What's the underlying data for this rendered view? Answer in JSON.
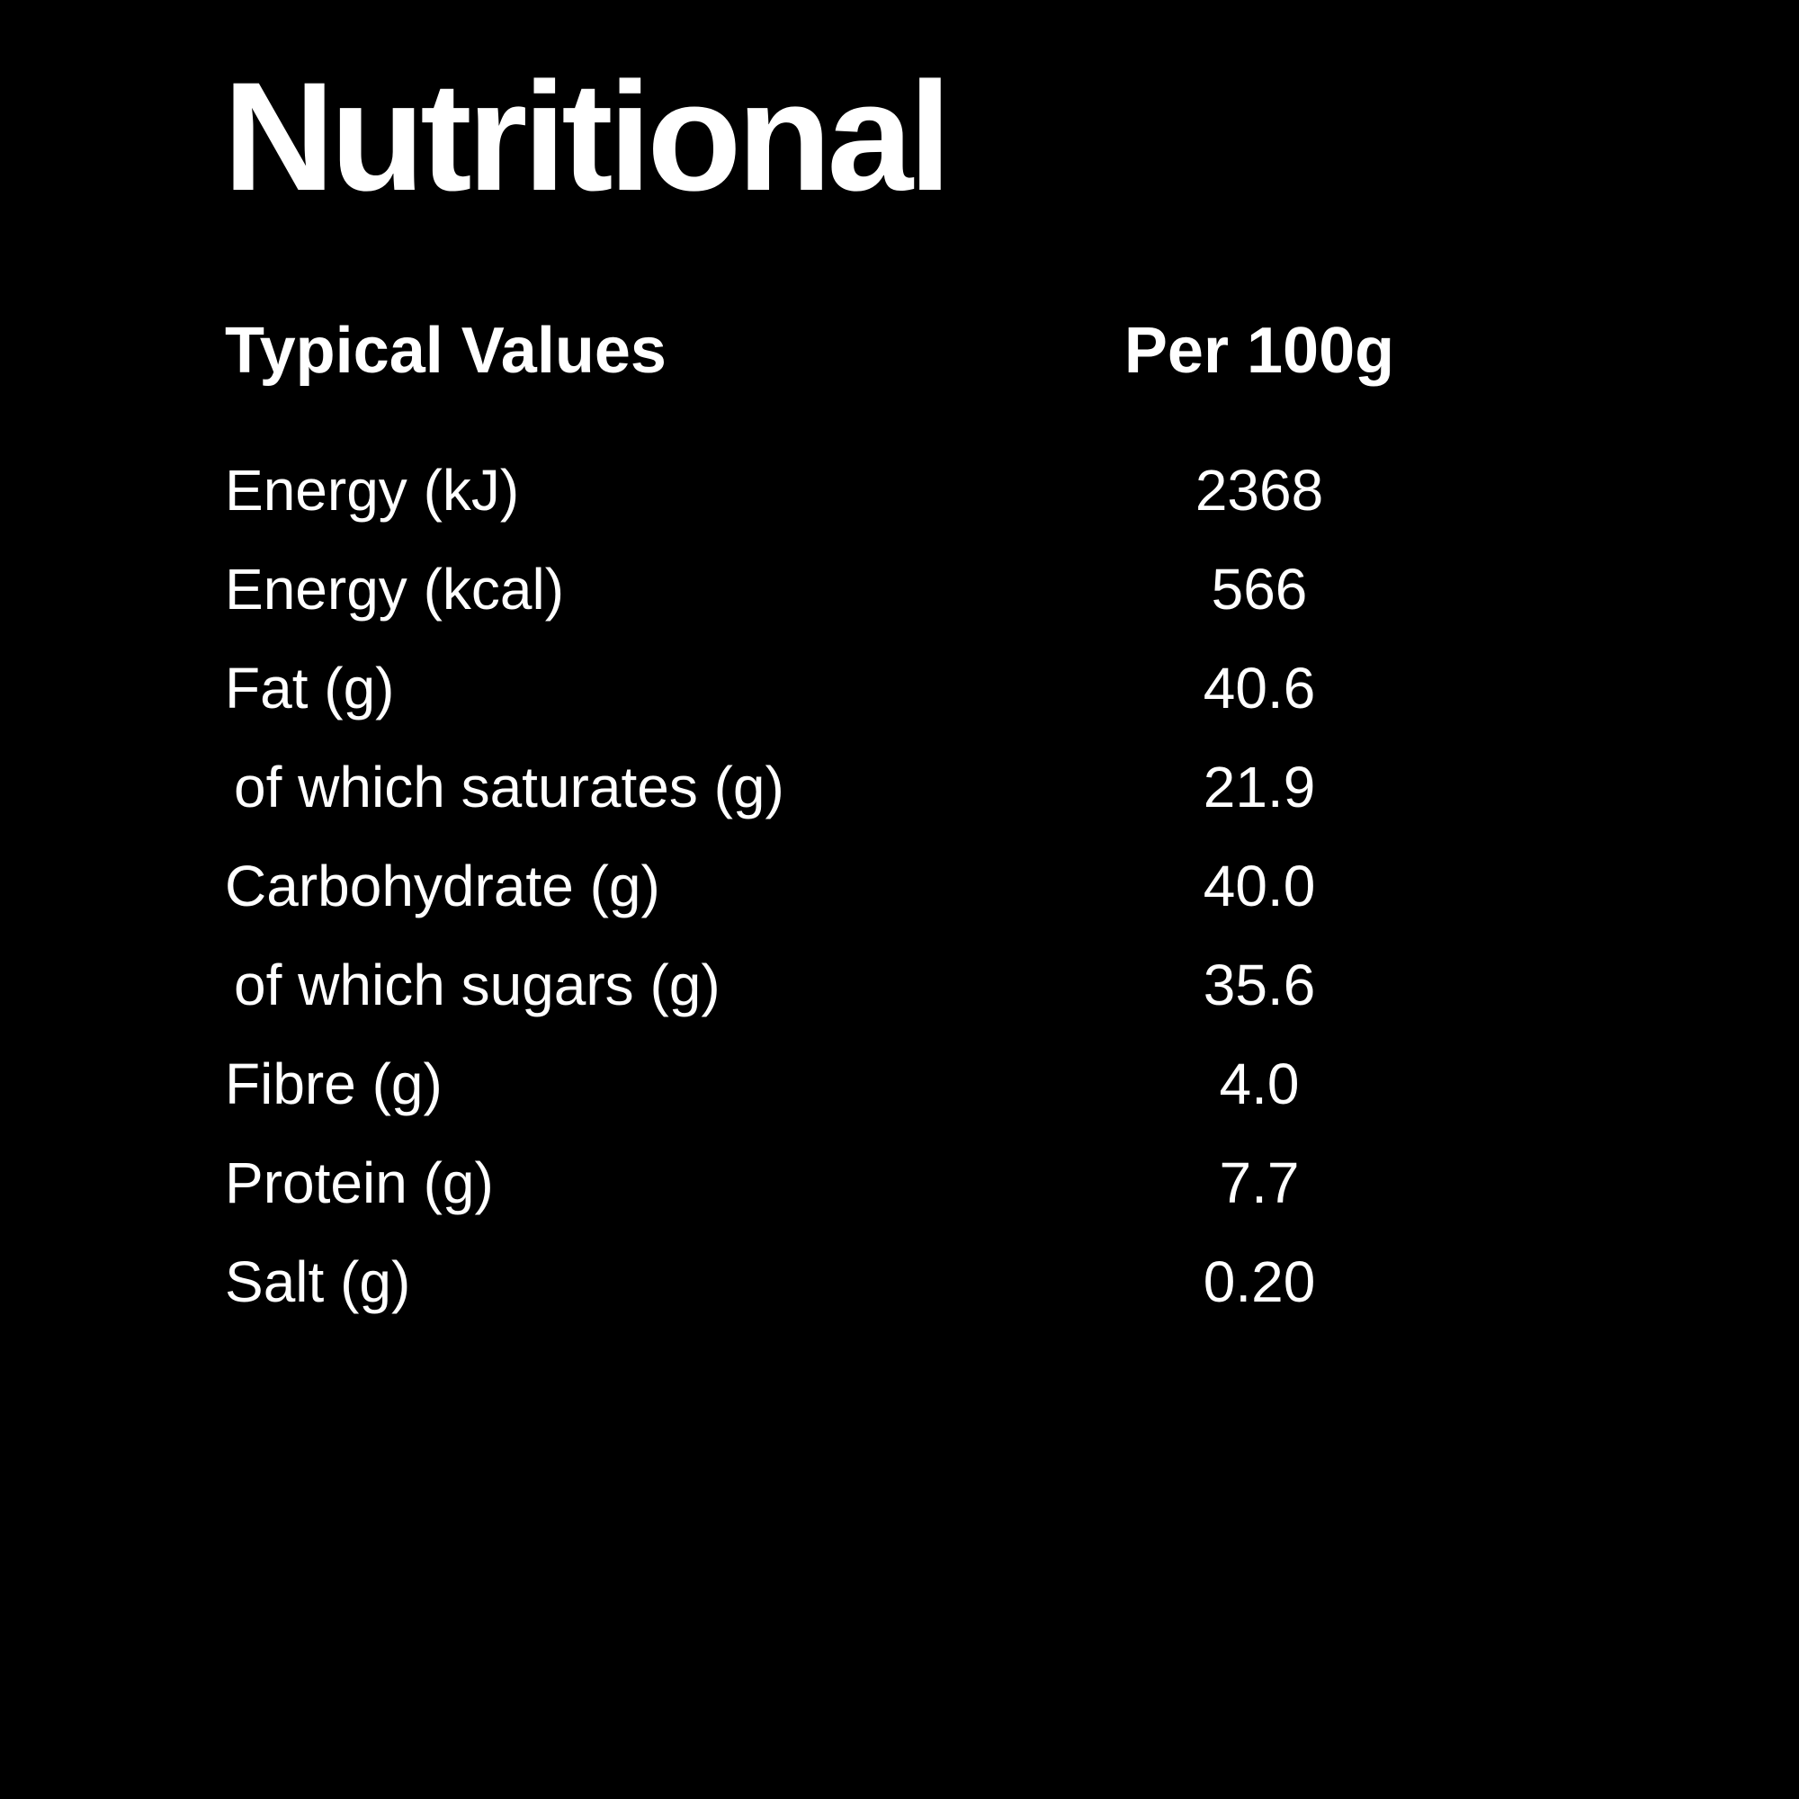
{
  "page": {
    "background_color": "#000000",
    "text_color": "#ffffff"
  },
  "title": "Nutritional",
  "table": {
    "headers": {
      "label": "Typical Values",
      "value": "Per 100g"
    },
    "rows": [
      {
        "label": "Energy (kJ)",
        "value": "2368",
        "indent": false
      },
      {
        "label": "Energy (kcal)",
        "value": "566",
        "indent": false
      },
      {
        "label": "Fat (g)",
        "value": "40.6",
        "indent": false
      },
      {
        "label": "of which saturates (g)",
        "value": "21.9",
        "indent": true
      },
      {
        "label": "Carbohydrate (g)",
        "value": "40.0",
        "indent": false
      },
      {
        "label": "of which sugars (g)",
        "value": "35.6",
        "indent": true
      },
      {
        "label": "Fibre (g)",
        "value": "4.0",
        "indent": false
      },
      {
        "label": "Protein (g)",
        "value": "7.7",
        "indent": false
      },
      {
        "label": "Salt (g)",
        "value": "0.20",
        "indent": false
      }
    ]
  }
}
